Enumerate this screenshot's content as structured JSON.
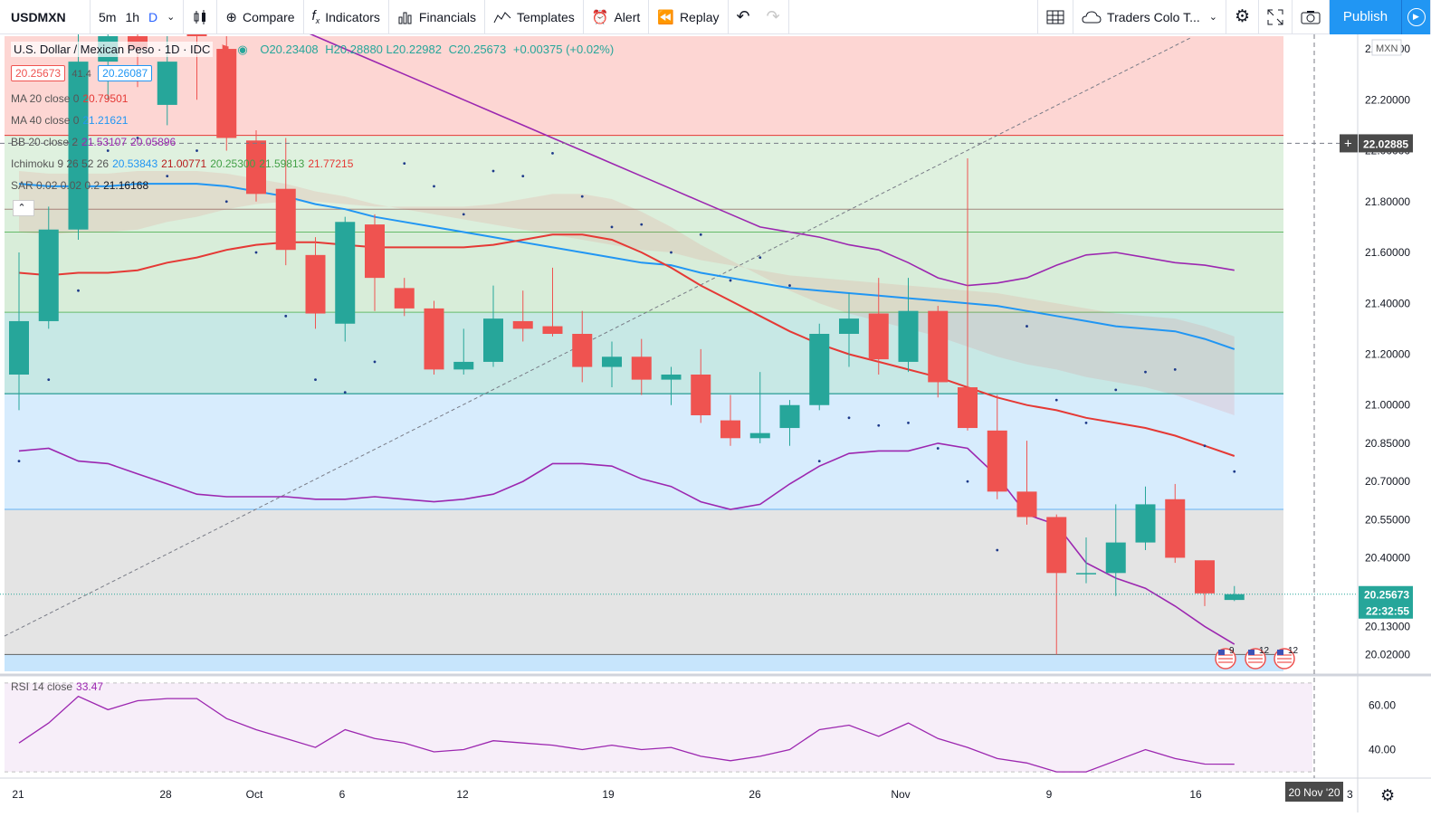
{
  "toolbar": {
    "symbol": "USDMXN",
    "intervals": [
      "5m",
      "1h",
      "D"
    ],
    "active_interval": "D",
    "compare": "Compare",
    "indicators": "Indicators",
    "financials": "Financials",
    "templates": "Templates",
    "alert": "Alert",
    "replay": "Replay",
    "layout_name": "Traders Colo T...",
    "publish": "Publish"
  },
  "legend": {
    "title": "U.S. Dollar / Mexican Peso · 1D · IDC",
    "ohlc": {
      "o": "O20.23408",
      "h": "H20.28880",
      "l": "L20.22982",
      "c": "C20.25673",
      "chg": "+0.00375 (+0.02%)"
    },
    "bid": "20.25673",
    "spread": "41.4",
    "ask": "20.26087",
    "ma20": {
      "label": "MA 20 close 0",
      "value": "20.79501"
    },
    "ma40": {
      "label": "MA 40 close 0",
      "value": "21.21621"
    },
    "bb": {
      "label": "BB 20 close 2",
      "v1": "21.53107",
      "v2": "20.05896"
    },
    "ichimoku": {
      "label": "Ichimoku 9 26 52 26",
      "v1": "20.53843",
      "v2": "21.00771",
      "v3": "20.25300",
      "v4": "21.59813",
      "v5": "21.77215"
    },
    "sar": {
      "label": "SAR 0.02 0.02 0.2",
      "value": "21.16168"
    },
    "rsi": {
      "label": "RSI 14 close",
      "value": "33.47"
    }
  },
  "price_axis": {
    "currency": "MXN",
    "ticks": [
      "22.40000",
      "22.20000",
      "22.00000",
      "21.80000",
      "21.60000",
      "21.40000",
      "21.20000",
      "21.00000",
      "20.85000",
      "20.70000",
      "20.55000",
      "20.40000",
      "20.13000",
      "20.02000"
    ],
    "crosshair_price": "22.02885",
    "last_price": "20.25673",
    "countdown": "22:32:55"
  },
  "rsi_axis": {
    "ticks": [
      "60.00",
      "40.00"
    ]
  },
  "time_axis": {
    "labels": [
      "21",
      "28",
      "Oct",
      "6",
      "12",
      "19",
      "26",
      "Nov",
      "9",
      "16"
    ],
    "crosshair_date": "20 Nov '20",
    "tail": "3"
  },
  "events": [
    {
      "count": "9"
    },
    {
      "count": "12"
    },
    {
      "count": "12"
    }
  ],
  "colors": {
    "up": "#26a69a",
    "down": "#ef5350",
    "ma20": "#e53935",
    "ma40": "#2196f3",
    "bb": "#9c27b0",
    "rsi": "#9c27b0",
    "accent": "#2196f3"
  },
  "chart_data": {
    "type": "candlestick",
    "title": "U.S. Dollar / Mexican Peso · 1D · IDC",
    "ylabel": "MXN",
    "ylim": [
      19.95,
      22.45
    ],
    "fib_levels": [
      22.06,
      21.77,
      21.68,
      21.365,
      21.045,
      20.59,
      20.02
    ],
    "candles": [
      {
        "date": "2020-09-21",
        "o": 21.12,
        "h": 21.6,
        "l": 20.98,
        "c": 21.33
      },
      {
        "date": "2020-09-22",
        "o": 21.33,
        "h": 21.78,
        "l": 21.3,
        "c": 21.69
      },
      {
        "date": "2020-09-23",
        "o": 21.69,
        "h": 22.5,
        "l": 21.65,
        "c": 22.35
      },
      {
        "date": "2020-09-24",
        "o": 22.35,
        "h": 22.55,
        "l": 22.2,
        "c": 22.45
      },
      {
        "date": "2020-09-25",
        "o": 22.45,
        "h": 22.6,
        "l": 22.25,
        "c": 22.4
      },
      {
        "date": "2020-09-28",
        "o": 22.18,
        "h": 22.45,
        "l": 22.1,
        "c": 22.35
      },
      {
        "date": "2020-09-29",
        "o": 22.5,
        "h": 22.65,
        "l": 22.2,
        "c": 22.45
      },
      {
        "date": "2020-09-30",
        "o": 22.4,
        "h": 22.45,
        "l": 22.0,
        "c": 22.05
      },
      {
        "date": "2020-10-01",
        "o": 22.04,
        "h": 22.08,
        "l": 21.8,
        "c": 21.83
      },
      {
        "date": "2020-10-02",
        "o": 21.85,
        "h": 22.05,
        "l": 21.55,
        "c": 21.61
      },
      {
        "date": "2020-10-05",
        "o": 21.59,
        "h": 21.66,
        "l": 21.3,
        "c": 21.36
      },
      {
        "date": "2020-10-06",
        "o": 21.32,
        "h": 21.74,
        "l": 21.25,
        "c": 21.72
      },
      {
        "date": "2020-10-07",
        "o": 21.71,
        "h": 21.75,
        "l": 21.37,
        "c": 21.5
      },
      {
        "date": "2020-10-08",
        "o": 21.46,
        "h": 21.5,
        "l": 21.35,
        "c": 21.38
      },
      {
        "date": "2020-10-09",
        "o": 21.38,
        "h": 21.41,
        "l": 21.12,
        "c": 21.14
      },
      {
        "date": "2020-10-12",
        "o": 21.14,
        "h": 21.3,
        "l": 21.12,
        "c": 21.17
      },
      {
        "date": "2020-10-13",
        "o": 21.17,
        "h": 21.47,
        "l": 21.15,
        "c": 21.34
      },
      {
        "date": "2020-10-14",
        "o": 21.33,
        "h": 21.45,
        "l": 21.25,
        "c": 21.3
      },
      {
        "date": "2020-10-15",
        "o": 21.31,
        "h": 21.54,
        "l": 21.27,
        "c": 21.28
      },
      {
        "date": "2020-10-16",
        "o": 21.28,
        "h": 21.37,
        "l": 21.09,
        "c": 21.15
      },
      {
        "date": "2020-10-19",
        "o": 21.15,
        "h": 21.25,
        "l": 21.07,
        "c": 21.19
      },
      {
        "date": "2020-10-20",
        "o": 21.19,
        "h": 21.26,
        "l": 21.04,
        "c": 21.1
      },
      {
        "date": "2020-10-21",
        "o": 21.1,
        "h": 21.15,
        "l": 21.0,
        "c": 21.12
      },
      {
        "date": "2020-10-22",
        "o": 21.12,
        "h": 21.22,
        "l": 20.93,
        "c": 20.96
      },
      {
        "date": "2020-10-23",
        "o": 20.94,
        "h": 21.04,
        "l": 20.84,
        "c": 20.87
      },
      {
        "date": "2020-10-26",
        "o": 20.87,
        "h": 21.13,
        "l": 20.85,
        "c": 20.89
      },
      {
        "date": "2020-10-27",
        "o": 20.91,
        "h": 21.02,
        "l": 20.84,
        "c": 21.0
      },
      {
        "date": "2020-10-28",
        "o": 21.0,
        "h": 21.32,
        "l": 20.98,
        "c": 21.28
      },
      {
        "date": "2020-10-29",
        "o": 21.28,
        "h": 21.44,
        "l": 21.15,
        "c": 21.34
      },
      {
        "date": "2020-10-30",
        "o": 21.36,
        "h": 21.5,
        "l": 21.12,
        "c": 21.18
      },
      {
        "date": "2020-11-02",
        "o": 21.17,
        "h": 21.5,
        "l": 21.13,
        "c": 21.37
      },
      {
        "date": "2020-11-03",
        "o": 21.37,
        "h": 21.39,
        "l": 21.03,
        "c": 21.09
      },
      {
        "date": "2020-11-04",
        "o": 21.07,
        "h": 21.97,
        "l": 20.9,
        "c": 20.91
      },
      {
        "date": "2020-11-05",
        "o": 20.9,
        "h": 21.04,
        "l": 20.63,
        "c": 20.66
      },
      {
        "date": "2020-11-06",
        "o": 20.66,
        "h": 20.86,
        "l": 20.53,
        "c": 20.56
      },
      {
        "date": "2020-11-09",
        "o": 20.56,
        "h": 20.57,
        "l": 20.02,
        "c": 20.34
      },
      {
        "date": "2020-11-10",
        "o": 20.34,
        "h": 20.48,
        "l": 20.3,
        "c": 20.34
      },
      {
        "date": "2020-11-11",
        "o": 20.34,
        "h": 20.61,
        "l": 20.25,
        "c": 20.46
      },
      {
        "date": "2020-11-12",
        "o": 20.46,
        "h": 20.68,
        "l": 20.43,
        "c": 20.61
      },
      {
        "date": "2020-11-13",
        "o": 20.63,
        "h": 20.69,
        "l": 20.38,
        "c": 20.4
      },
      {
        "date": "2020-11-16",
        "o": 20.39,
        "h": 20.39,
        "l": 20.21,
        "c": 20.26
      },
      {
        "date": "2020-11-17",
        "o": 20.23408,
        "h": 20.2888,
        "l": 20.22982,
        "c": 20.25673
      }
    ],
    "ma20": [
      21.52,
      21.51,
      21.52,
      21.52,
      21.53,
      21.56,
      21.58,
      21.61,
      21.63,
      21.64,
      21.64,
      21.63,
      21.62,
      21.62,
      21.62,
      21.62,
      21.63,
      21.65,
      21.67,
      21.67,
      21.65,
      21.6,
      21.54,
      21.47,
      21.41,
      21.35,
      21.29,
      21.24,
      21.2,
      21.17,
      21.14,
      21.11,
      21.07,
      21.03,
      21.0,
      20.98,
      20.95,
      20.93,
      20.91,
      20.88,
      20.84,
      20.8
    ],
    "ma40": [
      21.87,
      21.86,
      21.86,
      21.86,
      21.87,
      21.87,
      21.87,
      21.86,
      21.84,
      21.82,
      21.79,
      21.77,
      21.74,
      21.72,
      21.7,
      21.68,
      21.66,
      21.64,
      21.62,
      21.6,
      21.58,
      21.56,
      21.55,
      21.52,
      21.5,
      21.48,
      21.46,
      21.45,
      21.44,
      21.43,
      21.42,
      21.41,
      21.4,
      21.39,
      21.37,
      21.35,
      21.33,
      21.31,
      21.3,
      21.29,
      21.26,
      21.22
    ],
    "bb_lower": [
      20.82,
      20.83,
      20.78,
      20.77,
      20.73,
      20.69,
      20.65,
      20.64,
      20.64,
      20.64,
      20.63,
      20.63,
      20.64,
      20.63,
      20.62,
      20.63,
      20.65,
      20.7,
      20.77,
      20.77,
      20.76,
      20.71,
      20.68,
      20.62,
      20.59,
      20.61,
      20.69,
      20.76,
      20.81,
      20.82,
      20.82,
      20.85,
      20.83,
      20.72,
      20.57,
      20.53,
      20.38,
      20.32,
      20.28,
      20.21,
      20.13,
      20.06
    ],
    "bb_upper": [
      22.95,
      22.9,
      22.85,
      22.8,
      22.75,
      22.75,
      22.75,
      22.7,
      22.6,
      22.5,
      22.45,
      22.4,
      22.35,
      22.3,
      22.25,
      22.2,
      22.15,
      22.1,
      22.05,
      22.0,
      21.95,
      21.9,
      21.85,
      21.8,
      21.75,
      21.7,
      21.68,
      21.66,
      21.63,
      21.61,
      21.56,
      21.5,
      21.47,
      21.48,
      21.5,
      21.55,
      21.59,
      21.6,
      21.58,
      21.56,
      21.55,
      21.53
    ],
    "rsi": [
      43,
      52,
      64,
      58,
      62,
      63,
      63,
      54,
      49,
      45,
      41,
      49,
      45,
      43,
      39,
      40,
      44,
      43,
      42,
      40,
      42,
      40,
      41,
      37,
      35,
      37,
      40,
      49,
      51,
      46,
      52,
      45,
      41,
      36,
      34,
      30,
      30,
      35,
      40,
      36,
      33.5,
      33.47
    ],
    "rsi_ylim": [
      28,
      72
    ]
  }
}
